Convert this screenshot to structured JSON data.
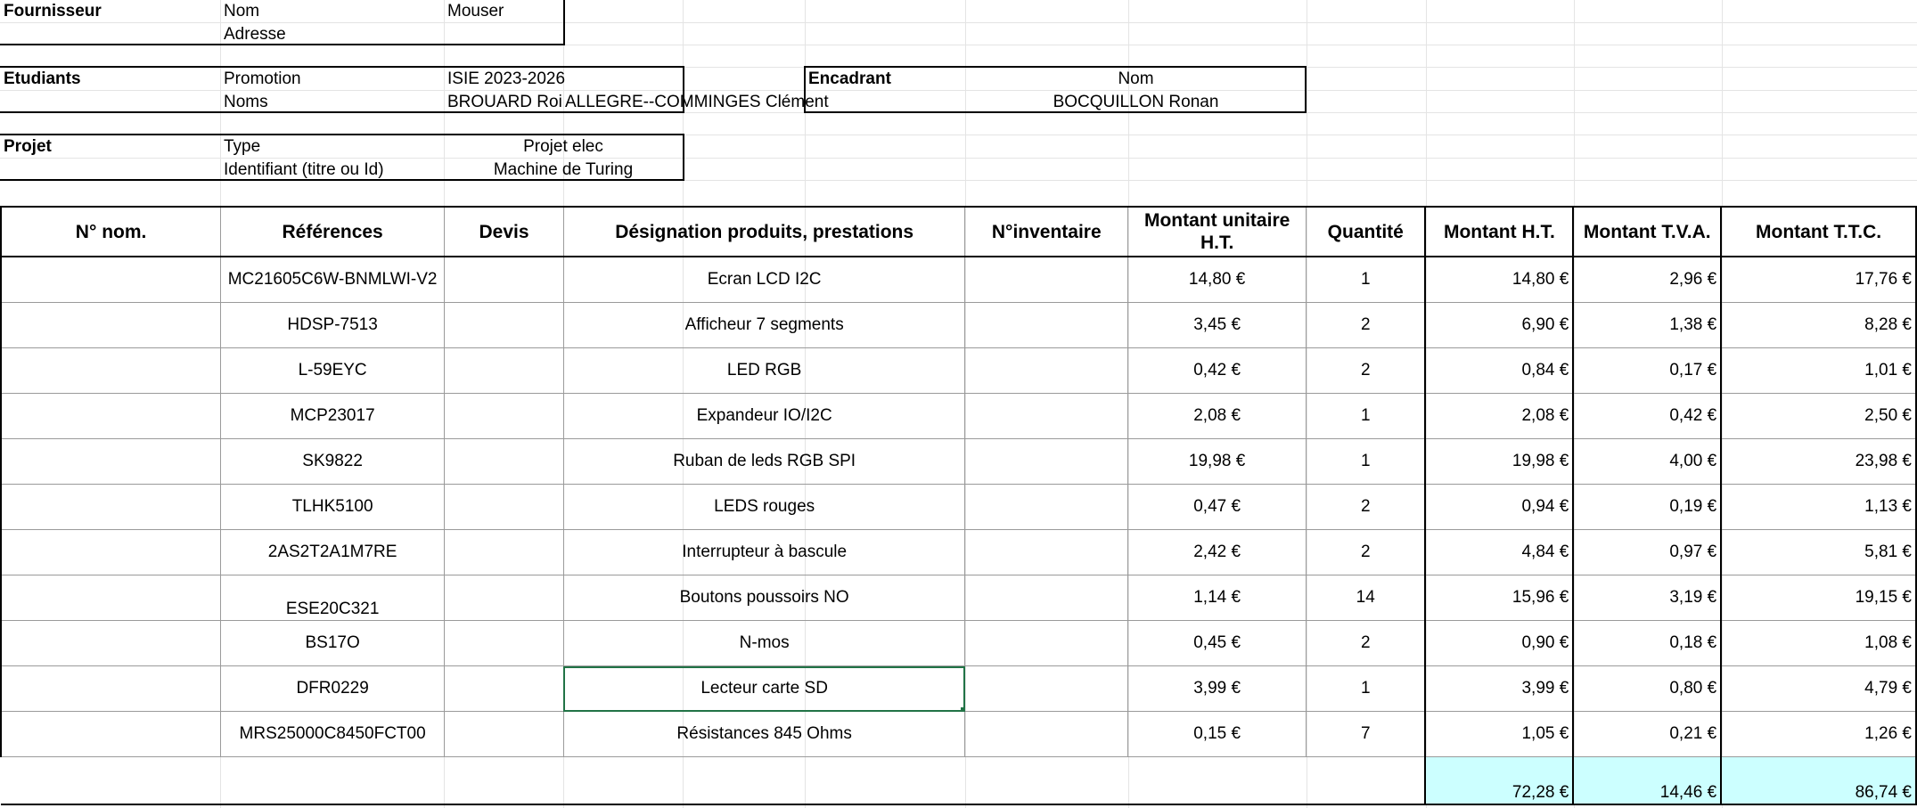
{
  "fournisseur": {
    "label": "Fournisseur",
    "nom_label": "Nom",
    "nom_value": "Mouser",
    "adresse_label": "Adresse"
  },
  "etudiants": {
    "label": "Etudiants",
    "promotion_label": "Promotion",
    "promotion_value": "ISIE 2023-2026",
    "noms_label": "Noms",
    "noms_value_1": "BROUARD Roi",
    "noms_value_2": "ALLEGRE--COMMINGES Clément"
  },
  "encadrant": {
    "label": "Encadrant",
    "nom_label": "Nom",
    "nom_value": "BOCQUILLON Ronan"
  },
  "projet": {
    "label": "Projet",
    "type_label": "Type",
    "type_value": "Projet elec",
    "id_label": "Identifiant (titre ou Id)",
    "id_value": "Machine de Turing"
  },
  "table": {
    "headers": [
      "N° nom.",
      "Références",
      "Devis",
      "Désignation produits, prestations",
      "N°inventaire",
      "Montant unitaire H.T.",
      "Quantité",
      "Montant H.T.",
      "Montant T.V.A.",
      "Montant T.T.C."
    ],
    "rows": [
      {
        "ref": "MC21605C6W-BNMLWI-V2",
        "designation": "Ecran LCD I2C",
        "unit": "14,80 €",
        "qty": "1",
        "ht": "14,80 €",
        "tva": "2,96 €",
        "ttc": "17,76 €"
      },
      {
        "ref": "HDSP-7513",
        "designation": "Afficheur 7 segments",
        "unit": "3,45 €",
        "qty": "2",
        "ht": "6,90 €",
        "tva": "1,38 €",
        "ttc": "8,28 €"
      },
      {
        "ref": "L-59EYC",
        "designation": "LED RGB",
        "unit": "0,42 €",
        "qty": "2",
        "ht": "0,84 €",
        "tva": "0,17 €",
        "ttc": "1,01 €"
      },
      {
        "ref": "MCP23017",
        "designation": "Expandeur IO/I2C",
        "unit": "2,08 €",
        "qty": "1",
        "ht": "2,08 €",
        "tva": "0,42 €",
        "ttc": "2,50 €"
      },
      {
        "ref": "SK9822",
        "designation": "Ruban de leds RGB SPI",
        "unit": "19,98 €",
        "qty": "1",
        "ht": "19,98 €",
        "tva": "4,00 €",
        "ttc": "23,98 €"
      },
      {
        "ref": "TLHK5100",
        "designation": "LEDS rouges",
        "unit": "0,47 €",
        "qty": "2",
        "ht": "0,94 €",
        "tva": "0,19 €",
        "ttc": "1,13 €"
      },
      {
        "ref": "2AS2T2A1M7RE",
        "designation": "Interrupteur à bascule",
        "unit": "2,42 €",
        "qty": "2",
        "ht": "4,84 €",
        "tva": "0,97 €",
        "ttc": "5,81 €"
      },
      {
        "ref": "ESE20C321",
        "designation": "Boutons poussoirs NO",
        "unit": "1,14 €",
        "qty": "14",
        "ht": "15,96 €",
        "tva": "3,19 €",
        "ttc": "19,15 €"
      },
      {
        "ref": "BS17O",
        "designation": "N-mos",
        "unit": "0,45 €",
        "qty": "2",
        "ht": "0,90 €",
        "tva": "0,18 €",
        "ttc": "1,08 €"
      },
      {
        "ref": "DFR0229",
        "designation": "Lecteur carte SD",
        "unit": "3,99 €",
        "qty": "1",
        "ht": "3,99 €",
        "tva": "0,80 €",
        "ttc": "4,79 €"
      },
      {
        "ref": "MRS25000C8450FCT00",
        "designation": "Résistances 845 Ohms",
        "unit": "0,15 €",
        "qty": "7",
        "ht": "1,05 €",
        "tva": "0,21 €",
        "ttc": "1,26 €"
      }
    ],
    "totals": {
      "ht": "72,28 €",
      "tva": "14,46 €",
      "ttc": "86,74 €"
    },
    "colors": {
      "total_fill": "#ccffff",
      "selection": "#217346"
    }
  }
}
